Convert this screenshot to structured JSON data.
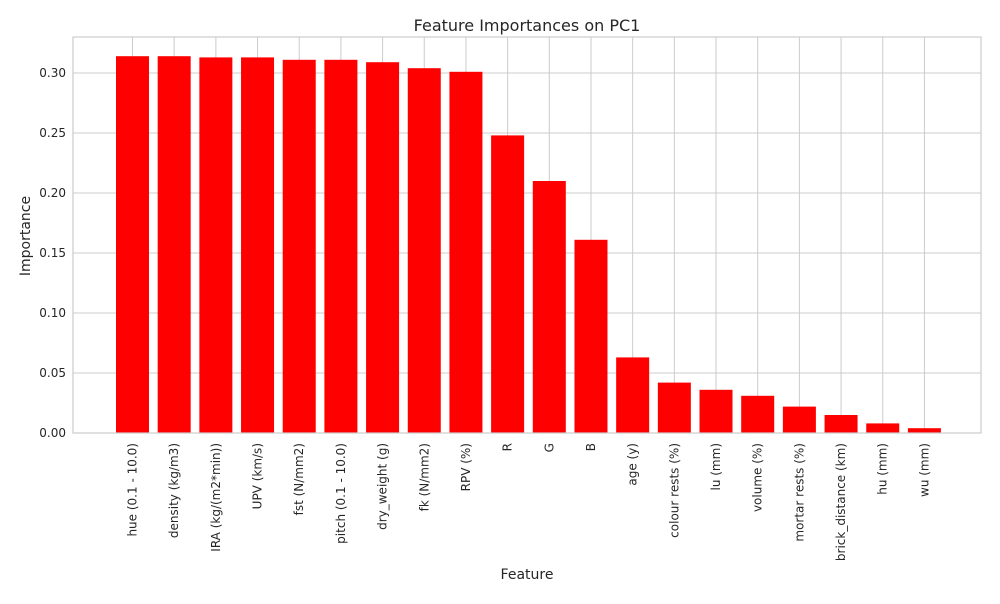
{
  "chart_data": {
    "type": "bar",
    "title": "Feature Importances on PC1",
    "xlabel": "Feature",
    "ylabel": "Importance",
    "ylim": [
      0,
      0.33
    ],
    "yticks": [
      "0.00",
      "0.05",
      "0.10",
      "0.15",
      "0.20",
      "0.25",
      "0.30"
    ],
    "grid": true,
    "bar_color": "#ff0000",
    "grid_color": "#cccccc",
    "categories": [
      "hue (0.1 - 10.0)",
      "density (kg/m3)",
      "IRA (kg/(m2*min))",
      "UPV (km/s)",
      "fst (N/mm2)",
      "pitch (0.1 - 10.0)",
      "dry_weight (g)",
      "fk (N/mm2)",
      "RPV (%)",
      "R",
      "G",
      "B",
      "age (y)",
      "colour rests (%)",
      "lu (mm)",
      "volume (%)",
      "mortar rests (%)",
      "brick_distance (km)",
      "hu (mm)",
      "wu (mm)"
    ],
    "values": [
      0.314,
      0.314,
      0.313,
      0.313,
      0.311,
      0.311,
      0.309,
      0.304,
      0.301,
      0.248,
      0.21,
      0.161,
      0.063,
      0.042,
      0.036,
      0.031,
      0.022,
      0.015,
      0.008,
      0.004
    ]
  }
}
